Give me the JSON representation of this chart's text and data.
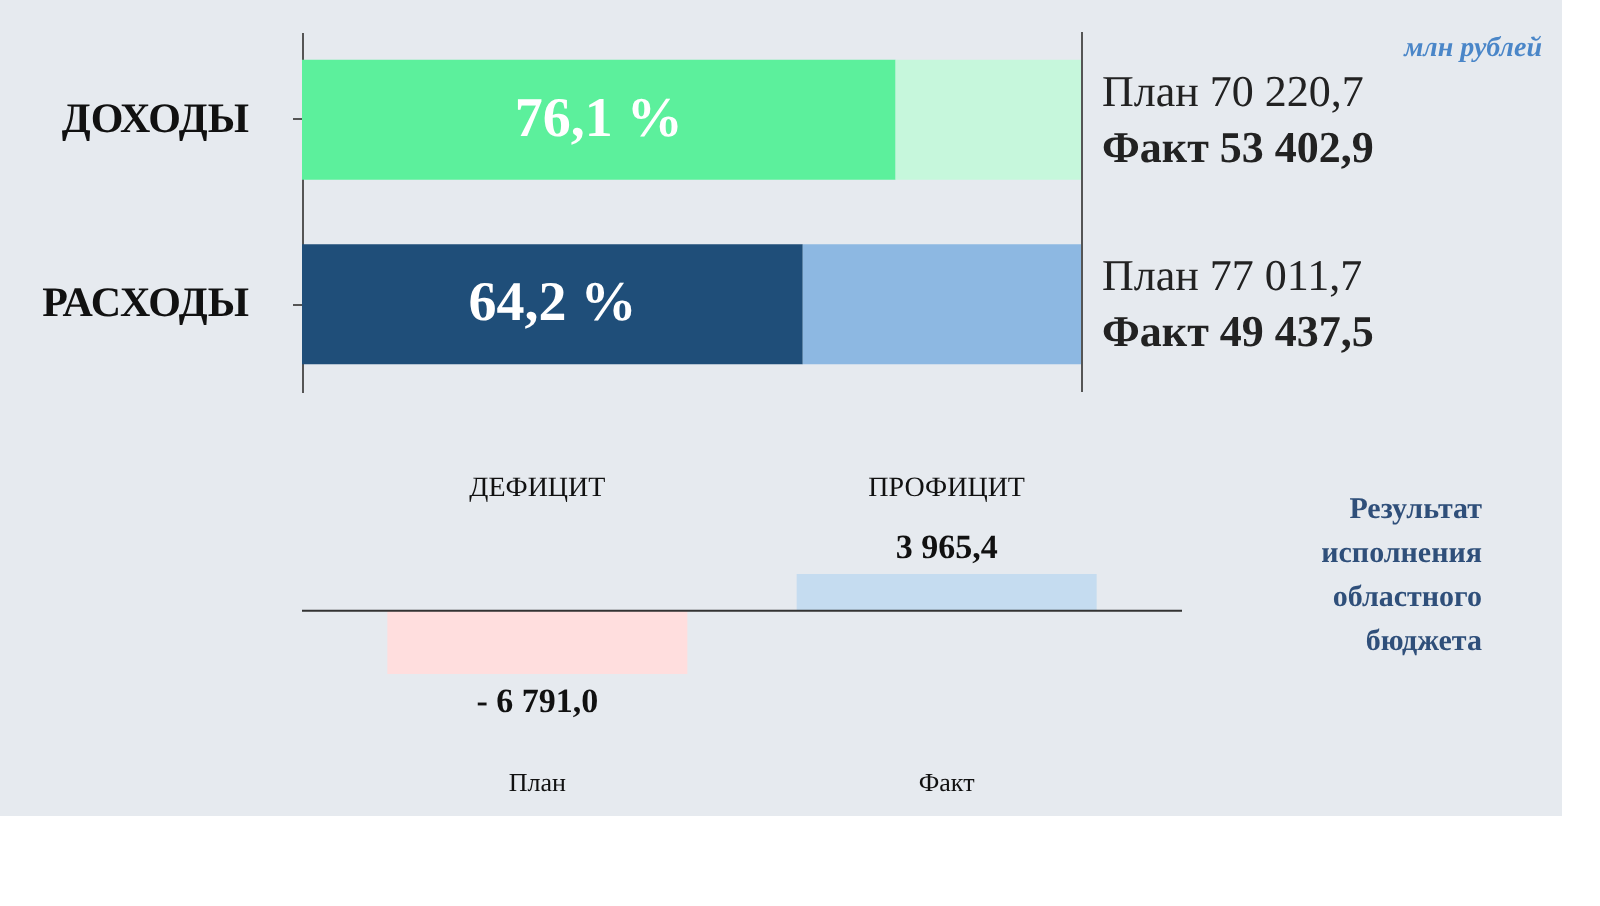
{
  "chart_data": [
    {
      "type": "bar",
      "orientation": "horizontal",
      "stacked": true,
      "categories": [
        "ДОХОДЫ",
        "РАСХОДЫ"
      ],
      "xlim": [
        0,
        100
      ],
      "tick_labels": "y",
      "series": [
        {
          "colors": [
            "#5cf09c",
            "#1f4e79"
          ],
          "values": [
            76.1,
            64.2
          ],
          "value_labels": [
            "76,1 %",
            "64,2 %"
          ]
        },
        {
          "colors": [
            "#c6f7dc",
            "#8db8e2"
          ],
          "values": [
            23.9,
            35.8
          ]
        }
      ],
      "annotations": [
        "План 70 220,7",
        "Факт 53 402,9",
        "План 77 011,7",
        "Факт 49 437,5",
        "млн рублей"
      ]
    },
    {
      "type": "bar",
      "categories": [
        "План",
        "Факт"
      ],
      "tick_labels": "x",
      "series": [
        {
          "colors": [
            "#ffdede",
            "#c5dcf0"
          ],
          "values": [
            -6791.0,
            3965.4
          ],
          "value_labels": [
            "- 6 791,0",
            "3 965,4"
          ]
        }
      ],
      "annotations": [
        "ДЕФИЦИТ",
        "ПРОФИЦИТ",
        "Результат исполнения областного бюджета"
      ]
    }
  ]
}
